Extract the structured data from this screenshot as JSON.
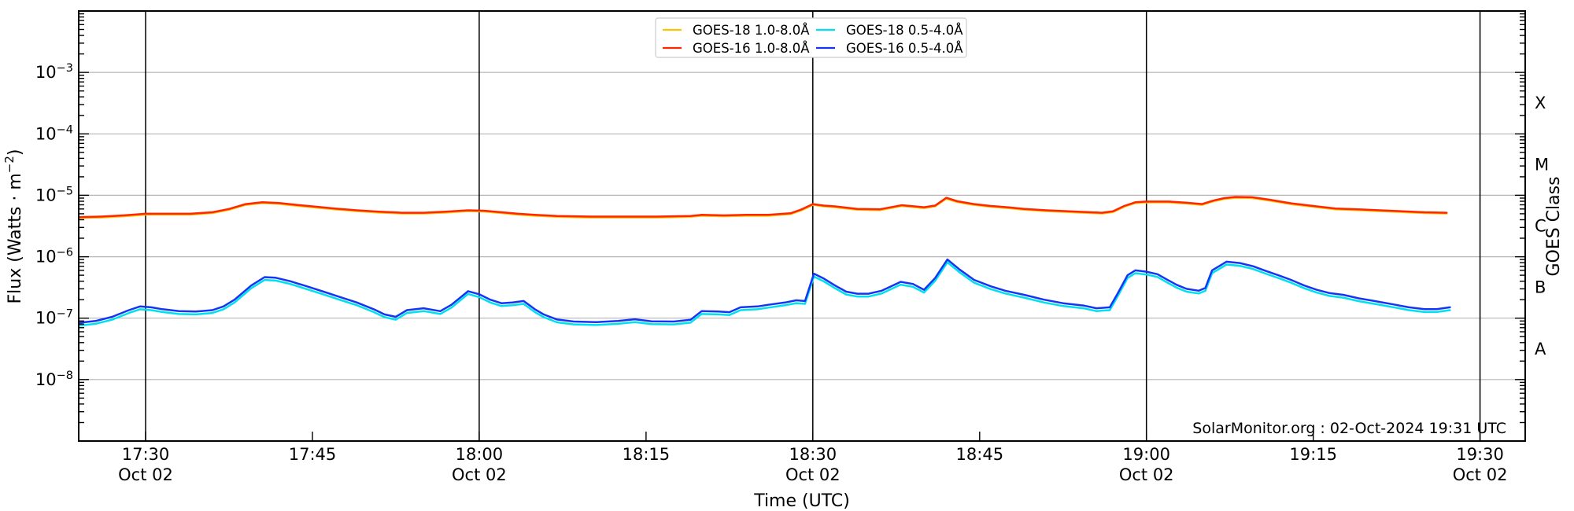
{
  "chart_data": {
    "type": "line",
    "title": "",
    "xlabel": "Time (UTC)",
    "ylabel": "Flux (Watts · m⁻²)",
    "ylabel_parts": {
      "main": "Flux (Watts · m",
      "sup": "−2",
      "end": ")"
    },
    "ylabel_right": "GOES Class",
    "watermark": "SolarMonitor.org : 02-Oct-2024 19:31 UTC",
    "x_unit": "minutes after 17:00 UTC, 02 Oct 2024",
    "xlim_minutes": [
      24,
      154
    ],
    "ylim": [
      1e-09,
      0.01
    ],
    "grid": {
      "horizontal_decades": true,
      "vertical_30min_lines": true,
      "grid_color": "#b6b6b6",
      "vline_color": "#000000"
    },
    "x_ticks": [
      {
        "m": 30,
        "label": "17:30",
        "date": "Oct 02"
      },
      {
        "m": 45,
        "label": "17:45",
        "date": ""
      },
      {
        "m": 60,
        "label": "18:00",
        "date": "Oct 02"
      },
      {
        "m": 75,
        "label": "18:15",
        "date": ""
      },
      {
        "m": 90,
        "label": "18:30",
        "date": "Oct 02"
      },
      {
        "m": 105,
        "label": "18:45",
        "date": ""
      },
      {
        "m": 120,
        "label": "19:00",
        "date": "Oct 02"
      },
      {
        "m": 135,
        "label": "19:15",
        "date": ""
      },
      {
        "m": 150,
        "label": "19:30",
        "date": "Oct 02"
      }
    ],
    "y_major_tick_exponents": [
      -3,
      -4,
      -5,
      -6,
      -7,
      -8
    ],
    "goes_classes": [
      {
        "label": "X",
        "log_center": -3.5
      },
      {
        "label": "M",
        "log_center": -4.5
      },
      {
        "label": "C",
        "log_center": -5.5
      },
      {
        "label": "B",
        "log_center": -6.5
      },
      {
        "label": "A",
        "log_center": -7.5
      }
    ],
    "legend": {
      "position": "top center",
      "columns": 2,
      "order": "column-major"
    },
    "series": [
      {
        "name": "GOES-18 1.0-8.0Å",
        "color": "#ffc400",
        "derived_from": 1,
        "scale": 0.97
      },
      {
        "name": "GOES-16 1.0-8.0Å",
        "color": "#ff2600",
        "points": [
          [
            24,
            4.4e-06
          ],
          [
            26,
            4.5e-06
          ],
          [
            28,
            4.7e-06
          ],
          [
            30,
            5e-06
          ],
          [
            32,
            5e-06
          ],
          [
            34,
            5e-06
          ],
          [
            36,
            5.3e-06
          ],
          [
            37.5,
            6e-06
          ],
          [
            39,
            7.2e-06
          ],
          [
            40.5,
            7.7e-06
          ],
          [
            42,
            7.5e-06
          ],
          [
            43.5,
            7e-06
          ],
          [
            45,
            6.6e-06
          ],
          [
            47,
            6.1e-06
          ],
          [
            49,
            5.7e-06
          ],
          [
            51,
            5.4e-06
          ],
          [
            53,
            5.2e-06
          ],
          [
            55,
            5.2e-06
          ],
          [
            57,
            5.4e-06
          ],
          [
            59,
            5.7e-06
          ],
          [
            60.5,
            5.6e-06
          ],
          [
            62,
            5.3e-06
          ],
          [
            63.5,
            5e-06
          ],
          [
            65,
            4.8e-06
          ],
          [
            67,
            4.6e-06
          ],
          [
            70,
            4.5e-06
          ],
          [
            73,
            4.5e-06
          ],
          [
            76,
            4.5e-06
          ],
          [
            79,
            4.6e-06
          ],
          [
            80,
            4.8e-06
          ],
          [
            82,
            4.7e-06
          ],
          [
            84,
            4.8e-06
          ],
          [
            86,
            4.8e-06
          ],
          [
            88,
            5.1e-06
          ],
          [
            89,
            5.9e-06
          ],
          [
            90,
            7.2e-06
          ],
          [
            91,
            6.8e-06
          ],
          [
            92,
            6.6e-06
          ],
          [
            94,
            6e-06
          ],
          [
            96,
            5.9e-06
          ],
          [
            98,
            6.9e-06
          ],
          [
            100,
            6.4e-06
          ],
          [
            101,
            6.8e-06
          ],
          [
            102,
            9.1e-06
          ],
          [
            103,
            8e-06
          ],
          [
            104.5,
            7.2e-06
          ],
          [
            106,
            6.7e-06
          ],
          [
            107.5,
            6.4e-06
          ],
          [
            109,
            6e-06
          ],
          [
            111,
            5.7e-06
          ],
          [
            113,
            5.5e-06
          ],
          [
            115,
            5.3e-06
          ],
          [
            116,
            5.2e-06
          ],
          [
            117,
            5.5e-06
          ],
          [
            118,
            6.7e-06
          ],
          [
            119,
            7.7e-06
          ],
          [
            120,
            7.9e-06
          ],
          [
            122,
            7.9e-06
          ],
          [
            123.5,
            7.6e-06
          ],
          [
            125,
            7.2e-06
          ],
          [
            126,
            8.2e-06
          ],
          [
            127,
            9e-06
          ],
          [
            128,
            9.4e-06
          ],
          [
            129.5,
            9.3e-06
          ],
          [
            131,
            8.5e-06
          ],
          [
            133,
            7.4e-06
          ],
          [
            135,
            6.7e-06
          ],
          [
            137,
            6.1e-06
          ],
          [
            139,
            5.9e-06
          ],
          [
            141,
            5.7e-06
          ],
          [
            143,
            5.5e-06
          ],
          [
            145,
            5.3e-06
          ],
          [
            147,
            5.2e-06
          ]
        ]
      },
      {
        "name": "GOES-18 0.5-4.0Å",
        "color": "#00e0f0",
        "derived_from": 3,
        "scale": 0.9
      },
      {
        "name": "GOES-16 0.5-4.0Å",
        "color": "#1535f5",
        "points": [
          [
            24,
            8.4e-08
          ],
          [
            25.5,
            9e-08
          ],
          [
            27,
            1.05e-07
          ],
          [
            28.5,
            1.35e-07
          ],
          [
            29.5,
            1.55e-07
          ],
          [
            30.5,
            1.5e-07
          ],
          [
            31.5,
            1.4e-07
          ],
          [
            33,
            1.3e-07
          ],
          [
            34.5,
            1.28e-07
          ],
          [
            36,
            1.35e-07
          ],
          [
            37,
            1.55e-07
          ],
          [
            38,
            2e-07
          ],
          [
            39.5,
            3.4e-07
          ],
          [
            40.7,
            4.65e-07
          ],
          [
            41.7,
            4.55e-07
          ],
          [
            43,
            4e-07
          ],
          [
            44.5,
            3.3e-07
          ],
          [
            46,
            2.7e-07
          ],
          [
            47.5,
            2.2e-07
          ],
          [
            49,
            1.8e-07
          ],
          [
            50.5,
            1.4e-07
          ],
          [
            51.5,
            1.15e-07
          ],
          [
            52.5,
            1.05e-07
          ],
          [
            53.5,
            1.35e-07
          ],
          [
            55,
            1.45e-07
          ],
          [
            56.5,
            1.3e-07
          ],
          [
            57.5,
            1.65e-07
          ],
          [
            59,
            2.75e-07
          ],
          [
            60,
            2.45e-07
          ],
          [
            61,
            2e-07
          ],
          [
            62,
            1.75e-07
          ],
          [
            63,
            1.8e-07
          ],
          [
            64,
            1.9e-07
          ],
          [
            65,
            1.4e-07
          ],
          [
            65.8,
            1.15e-07
          ],
          [
            67,
            9.5e-08
          ],
          [
            68.5,
            8.8e-08
          ],
          [
            70.5,
            8.6e-08
          ],
          [
            72.5,
            9e-08
          ],
          [
            74,
            9.6e-08
          ],
          [
            75.5,
            8.9e-08
          ],
          [
            77.5,
            8.8e-08
          ],
          [
            79,
            9.4e-08
          ],
          [
            80,
            1.3e-07
          ],
          [
            81.5,
            1.28e-07
          ],
          [
            82.5,
            1.25e-07
          ],
          [
            83.5,
            1.5e-07
          ],
          [
            85,
            1.55e-07
          ],
          [
            86,
            1.65e-07
          ],
          [
            87.5,
            1.8e-07
          ],
          [
            88.5,
            1.95e-07
          ],
          [
            89.3,
            1.9e-07
          ],
          [
            90.1,
            5.3e-07
          ],
          [
            91,
            4.4e-07
          ],
          [
            92,
            3.4e-07
          ],
          [
            93,
            2.7e-07
          ],
          [
            94,
            2.5e-07
          ],
          [
            95,
            2.5e-07
          ],
          [
            96.2,
            2.8e-07
          ],
          [
            97.9,
            3.9e-07
          ],
          [
            99,
            3.6e-07
          ],
          [
            100,
            2.9e-07
          ],
          [
            101,
            4.5e-07
          ],
          [
            102.1,
            9e-07
          ],
          [
            103.2,
            6.2e-07
          ],
          [
            104.5,
            4.2e-07
          ],
          [
            106,
            3.3e-07
          ],
          [
            107.3,
            2.8e-07
          ],
          [
            109,
            2.4e-07
          ],
          [
            110.8,
            2e-07
          ],
          [
            112.5,
            1.75e-07
          ],
          [
            114.4,
            1.6e-07
          ],
          [
            115.5,
            1.45e-07
          ],
          [
            116.7,
            1.5e-07
          ],
          [
            117.4,
            2.5e-07
          ],
          [
            118.3,
            5e-07
          ],
          [
            119,
            6e-07
          ],
          [
            120,
            5.7e-07
          ],
          [
            121,
            5.2e-07
          ],
          [
            121.8,
            4.3e-07
          ],
          [
            122.7,
            3.5e-07
          ],
          [
            123.6,
            3e-07
          ],
          [
            124.7,
            2.8e-07
          ],
          [
            125.3,
            3.1e-07
          ],
          [
            125.9,
            6e-07
          ],
          [
            127.2,
            8.3e-07
          ],
          [
            128.4,
            7.9e-07
          ],
          [
            129.6,
            7e-07
          ],
          [
            130.6,
            6e-07
          ],
          [
            132,
            4.9e-07
          ],
          [
            133,
            4.2e-07
          ],
          [
            134.2,
            3.4e-07
          ],
          [
            135.3,
            2.9e-07
          ],
          [
            136.5,
            2.55e-07
          ],
          [
            137.7,
            2.4e-07
          ],
          [
            139.1,
            2.1e-07
          ],
          [
            140.5,
            1.9e-07
          ],
          [
            142.4,
            1.65e-07
          ],
          [
            143.6,
            1.5e-07
          ],
          [
            145,
            1.4e-07
          ],
          [
            146.1,
            1.4e-07
          ],
          [
            147.3,
            1.5e-07
          ]
        ]
      }
    ]
  }
}
